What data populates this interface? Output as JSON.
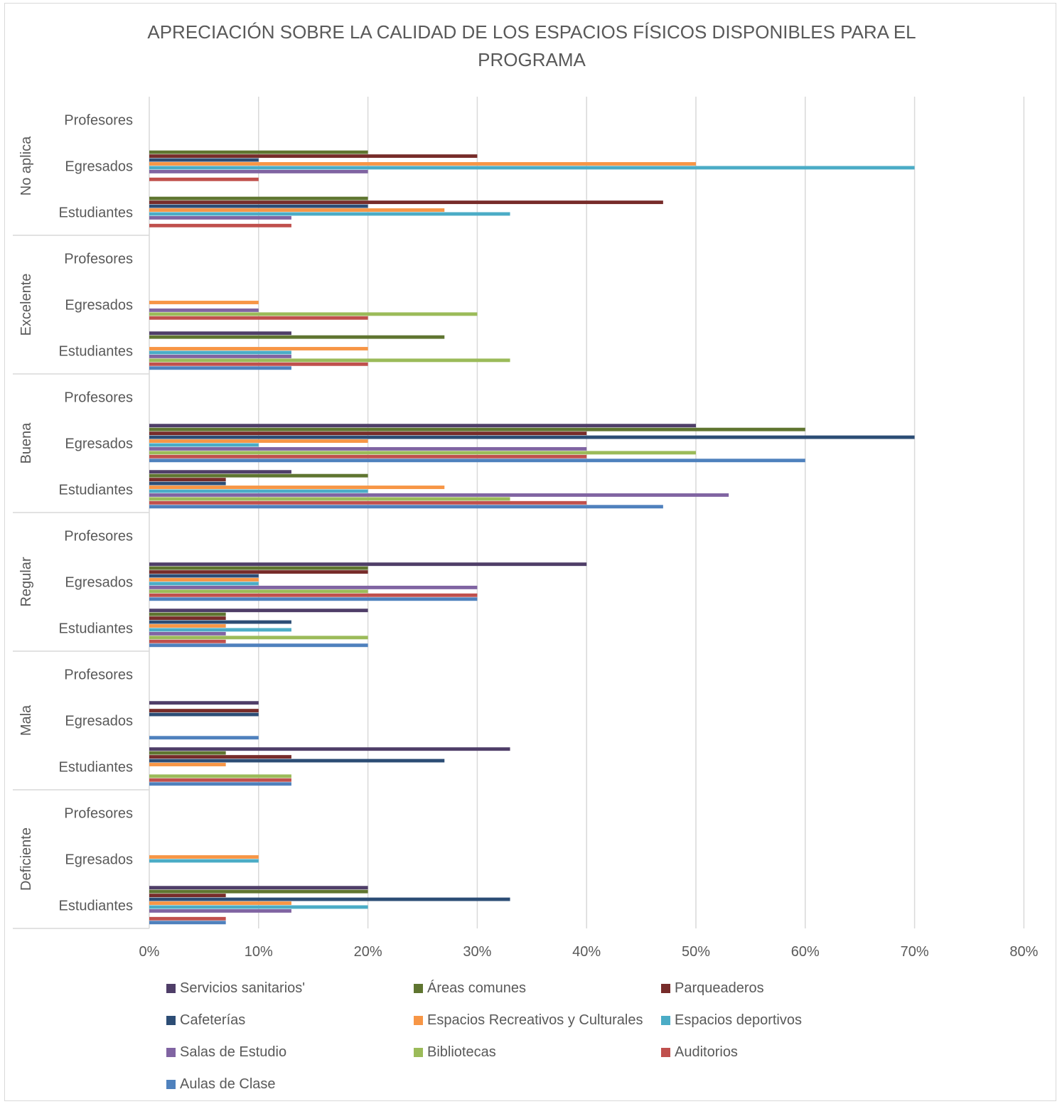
{
  "chart_data": {
    "type": "bar",
    "orientation": "horizontal",
    "title": "APRECIACIÓN SOBRE LA CALIDAD DE LOS ESPACIOS FÍSICOS DISPONIBLES PARA EL PROGRAMA",
    "xlim": [
      0,
      80
    ],
    "x_ticks": [
      "0%",
      "10%",
      "20%",
      "30%",
      "40%",
      "50%",
      "60%",
      "70%",
      "80%"
    ],
    "grid": "vertical",
    "legend_position": "bottom",
    "groups": [
      "No aplica",
      "Excelente",
      "Buena",
      "Regular",
      "Mala",
      "Deficiente"
    ],
    "subcategories": [
      "Profesores",
      "Egresados",
      "Estudiantes"
    ],
    "series": [
      {
        "name": "Servicios sanitarios'",
        "color": "#4f3e68",
        "values": {
          "No aplica": [
            0,
            0,
            0
          ],
          "Excelente": [
            0,
            0,
            13
          ],
          "Buena": [
            0,
            50,
            13
          ],
          "Regular": [
            0,
            40,
            20
          ],
          "Mala": [
            0,
            10,
            33
          ],
          "Deficiente": [
            0,
            0,
            20
          ]
        }
      },
      {
        "name": "Áreas comunes",
        "color": "#5f7530",
        "values": {
          "No aplica": [
            0,
            20,
            20
          ],
          "Excelente": [
            0,
            0,
            27
          ],
          "Buena": [
            0,
            60,
            20
          ],
          "Regular": [
            0,
            20,
            7
          ],
          "Mala": [
            0,
            0,
            7
          ],
          "Deficiente": [
            0,
            0,
            20
          ]
        }
      },
      {
        "name": "Parqueaderos",
        "color": "#772c2a",
        "values": {
          "No aplica": [
            0,
            30,
            47
          ],
          "Excelente": [
            0,
            0,
            0
          ],
          "Buena": [
            0,
            40,
            7
          ],
          "Regular": [
            0,
            20,
            7
          ],
          "Mala": [
            0,
            10,
            13
          ],
          "Deficiente": [
            0,
            0,
            7
          ]
        }
      },
      {
        "name": "Cafeterías",
        "color": "#2c4d75",
        "values": {
          "No aplica": [
            0,
            10,
            20
          ],
          "Excelente": [
            0,
            0,
            0
          ],
          "Buena": [
            0,
            70,
            7
          ],
          "Regular": [
            0,
            10,
            13
          ],
          "Mala": [
            0,
            10,
            27
          ],
          "Deficiente": [
            0,
            0,
            33
          ]
        }
      },
      {
        "name": "Espacios Recreativos y Culturales",
        "color": "#f79646",
        "values": {
          "No aplica": [
            0,
            50,
            27
          ],
          "Excelente": [
            0,
            10,
            20
          ],
          "Buena": [
            0,
            20,
            27
          ],
          "Regular": [
            0,
            10,
            7
          ],
          "Mala": [
            0,
            0,
            7
          ],
          "Deficiente": [
            0,
            10,
            13
          ]
        }
      },
      {
        "name": "Espacios deportivos",
        "color": "#4bacc6",
        "values": {
          "No aplica": [
            0,
            70,
            33
          ],
          "Excelente": [
            0,
            0,
            13
          ],
          "Buena": [
            0,
            10,
            20
          ],
          "Regular": [
            0,
            10,
            13
          ],
          "Mala": [
            0,
            0,
            0
          ],
          "Deficiente": [
            0,
            10,
            20
          ]
        }
      },
      {
        "name": "Salas de Estudio",
        "color": "#8064a2",
        "values": {
          "No aplica": [
            0,
            20,
            13
          ],
          "Excelente": [
            0,
            10,
            13
          ],
          "Buena": [
            0,
            40,
            53
          ],
          "Regular": [
            0,
            30,
            7
          ],
          "Mala": [
            0,
            0,
            0
          ],
          "Deficiente": [
            0,
            0,
            13
          ]
        }
      },
      {
        "name": "Bibliotecas",
        "color": "#9bbb59",
        "values": {
          "No aplica": [
            0,
            0,
            0
          ],
          "Excelente": [
            0,
            30,
            33
          ],
          "Buena": [
            0,
            50,
            33
          ],
          "Regular": [
            0,
            20,
            20
          ],
          "Mala": [
            0,
            0,
            13
          ],
          "Deficiente": [
            0,
            0,
            0
          ]
        }
      },
      {
        "name": "Auditorios",
        "color": "#c0504d",
        "values": {
          "No aplica": [
            0,
            10,
            13
          ],
          "Excelente": [
            0,
            20,
            20
          ],
          "Buena": [
            0,
            40,
            40
          ],
          "Regular": [
            0,
            30,
            7
          ],
          "Mala": [
            0,
            0,
            13
          ],
          "Deficiente": [
            0,
            0,
            7
          ]
        }
      },
      {
        "name": "Aulas de Clase",
        "color": "#4f81bd",
        "values": {
          "No aplica": [
            0,
            0,
            0
          ],
          "Excelente": [
            0,
            0,
            13
          ],
          "Buena": [
            0,
            60,
            47
          ],
          "Regular": [
            0,
            30,
            20
          ],
          "Mala": [
            0,
            10,
            13
          ],
          "Deficiente": [
            0,
            0,
            7
          ]
        }
      }
    ]
  }
}
